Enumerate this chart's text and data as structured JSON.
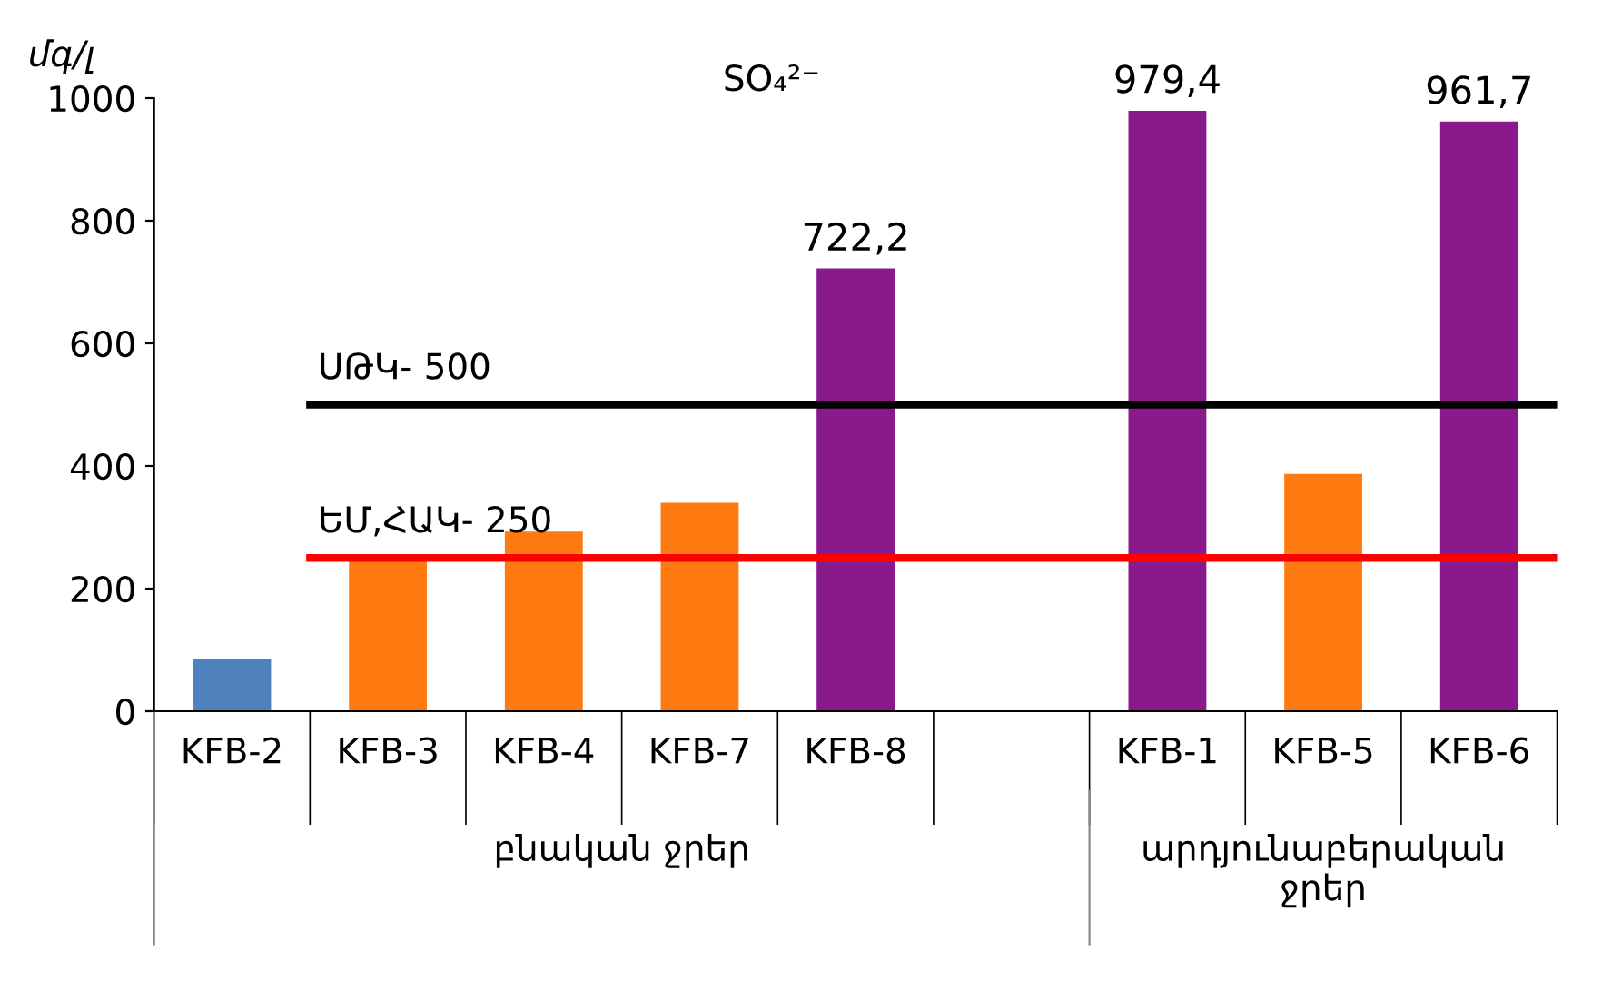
{
  "chart_data": {
    "type": "bar",
    "title": "SO₄²⁻",
    "ylabel": "մգ/լ",
    "categories": [
      "KFB-2",
      "KFB-3",
      "KFB-4",
      "KFB-7",
      "KFB-8",
      null,
      "KFB-1",
      "KFB-5",
      "KFB-6"
    ],
    "values": [
      85,
      250,
      293,
      340,
      722.2,
      null,
      979.4,
      387,
      961.7
    ],
    "colors": [
      "#4f81bd",
      "#ff7a10",
      "#ff7a10",
      "#ff7a10",
      "#8a1a8c",
      null,
      "#8a1a8c",
      "#ff7a10",
      "#8a1a8c"
    ],
    "value_labels": [
      null,
      null,
      null,
      null,
      "722,2",
      null,
      "979,4",
      null,
      "961,7"
    ],
    "ylim": [
      0,
      1000
    ],
    "yticks": [
      0,
      200,
      400,
      600,
      800,
      1000
    ],
    "grid": false,
    "ref_lines": [
      {
        "axis": "y",
        "value": 500,
        "label": "ՍԹԿ- 500",
        "color": "#000000"
      },
      {
        "axis": "y",
        "value": 250,
        "label": "ԵՄ,ՀԱԿ- 250",
        "color": "#ff0000"
      }
    ],
    "annotations": [
      "բնական ջրեր",
      "արդյունաբերական\nջրեր"
    ]
  }
}
